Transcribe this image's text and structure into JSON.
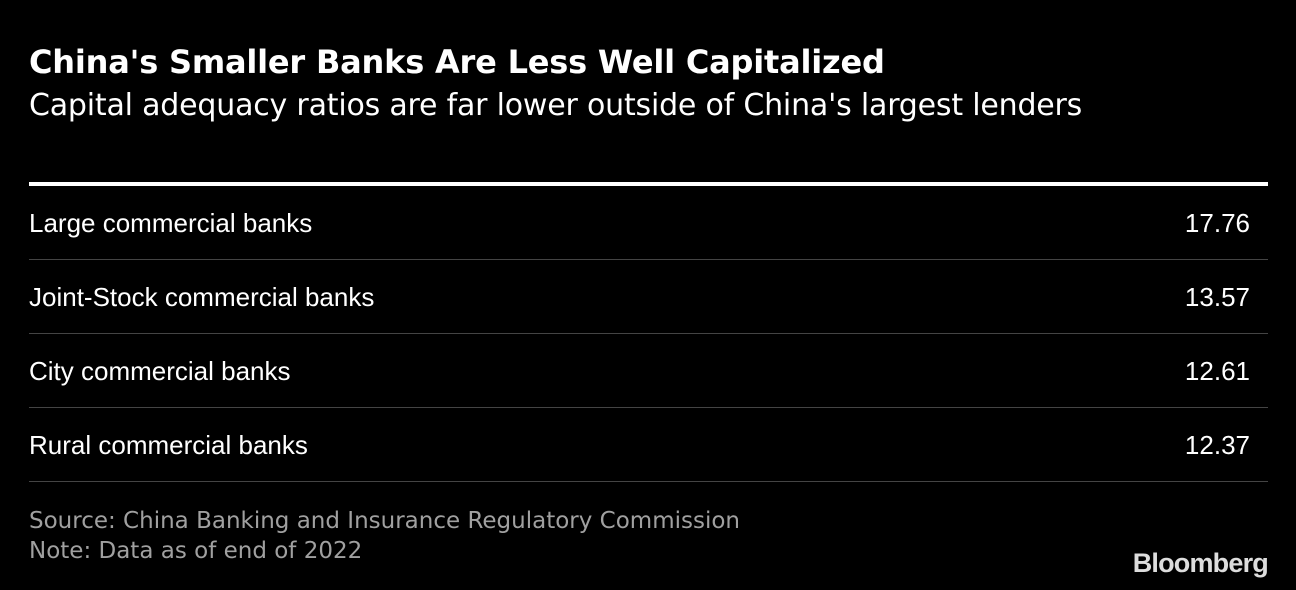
{
  "header": {
    "title": "China's Smaller Banks Are Less Well Capitalized",
    "subtitle": "Capital adequacy ratios are far lower outside of China's largest lenders"
  },
  "chart_data": {
    "type": "table",
    "rows": [
      {
        "label": "Large commercial banks",
        "value": "17.76"
      },
      {
        "label": "Joint-Stock commercial banks",
        "value": "13.57"
      },
      {
        "label": "City commercial banks",
        "value": "12.61"
      },
      {
        "label": "Rural commercial banks",
        "value": "12.37"
      }
    ]
  },
  "footer": {
    "source": "Source: China Banking and Insurance Regulatory Commission",
    "note": "Note: Data as of end of 2022"
  },
  "brand": {
    "logo_text": "Bloomberg"
  },
  "colors": {
    "background": "#000000",
    "text": "#ffffff",
    "footer_text": "#a0a0a0",
    "divider": "#444444"
  }
}
